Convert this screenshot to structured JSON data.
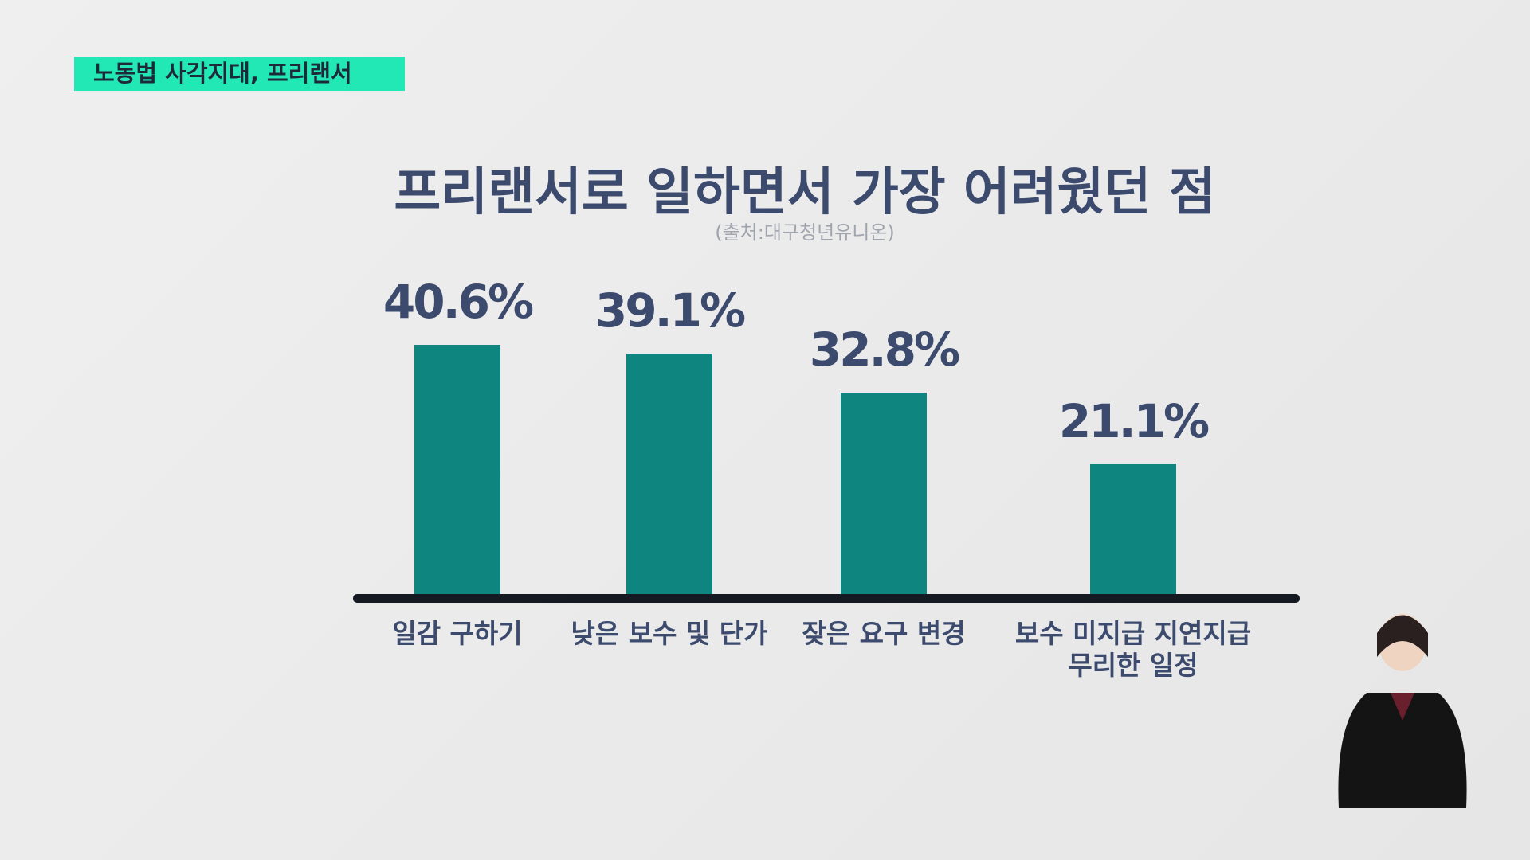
{
  "header": {
    "tag": "노동법 사각지대, 프리랜서"
  },
  "chart_data": {
    "type": "bar",
    "title": "프리랜서로 일하면서 가장 어려웠던 점",
    "subtitle": "(출처:대구청년유니온)",
    "categories": [
      "일감 구하기",
      "낮은 보수 및 단가",
      "잦은 요구 변경",
      "보수 미지급 지연지급\n무리한 일정"
    ],
    "values": [
      40.6,
      39.1,
      32.8,
      21.1
    ],
    "value_labels": [
      "40.6%",
      "39.1%",
      "32.8%",
      "21.1%"
    ],
    "color": "#0f857f"
  }
}
